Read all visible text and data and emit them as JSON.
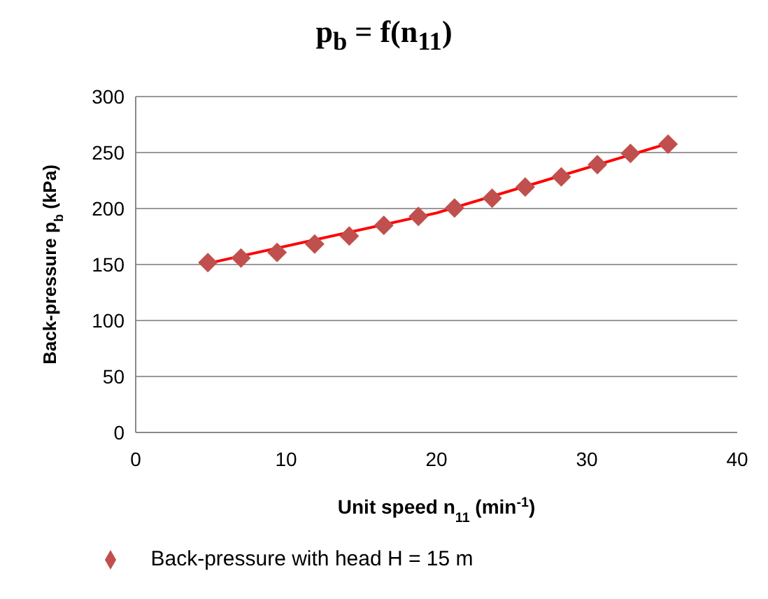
{
  "chart_data": {
    "type": "scatter",
    "title": "p$_{b}$ = f(n$_{11}$)",
    "xlabel": "Unit speed  n$_{11}$  (min$^{-1}$)",
    "ylabel": "Back-pressure p$_{b}$ (kPa)",
    "x": [
      4.8,
      7.0,
      9.4,
      11.9,
      14.2,
      16.5,
      18.8,
      21.2,
      23.7,
      25.9,
      28.3,
      30.7,
      32.9,
      35.4
    ],
    "series": [
      {
        "name": "Back-pressure with head H = 15 m",
        "color": "#c0504d",
        "marker": "diamond",
        "values": [
          151.7,
          155.8,
          160.8,
          168.3,
          175.4,
          185,
          192.9,
          200.4,
          209.2,
          219.2,
          228.3,
          239.2,
          249.2,
          257.5
        ]
      },
      {
        "type": "line",
        "color": "#ff0000",
        "x": [
          4.8,
          20,
          35.4
        ],
        "values": [
          151,
          196,
          258
        ],
        "marker": "none",
        "line_style": "solid"
      }
    ],
    "xlim": [
      0,
      40
    ],
    "xticks": [
      0,
      10,
      20,
      30,
      40
    ],
    "ylim": [
      0,
      300
    ],
    "yticks": [
      0,
      50,
      100,
      150,
      200,
      250,
      300
    ],
    "grid": "y",
    "legend": "bottom"
  }
}
